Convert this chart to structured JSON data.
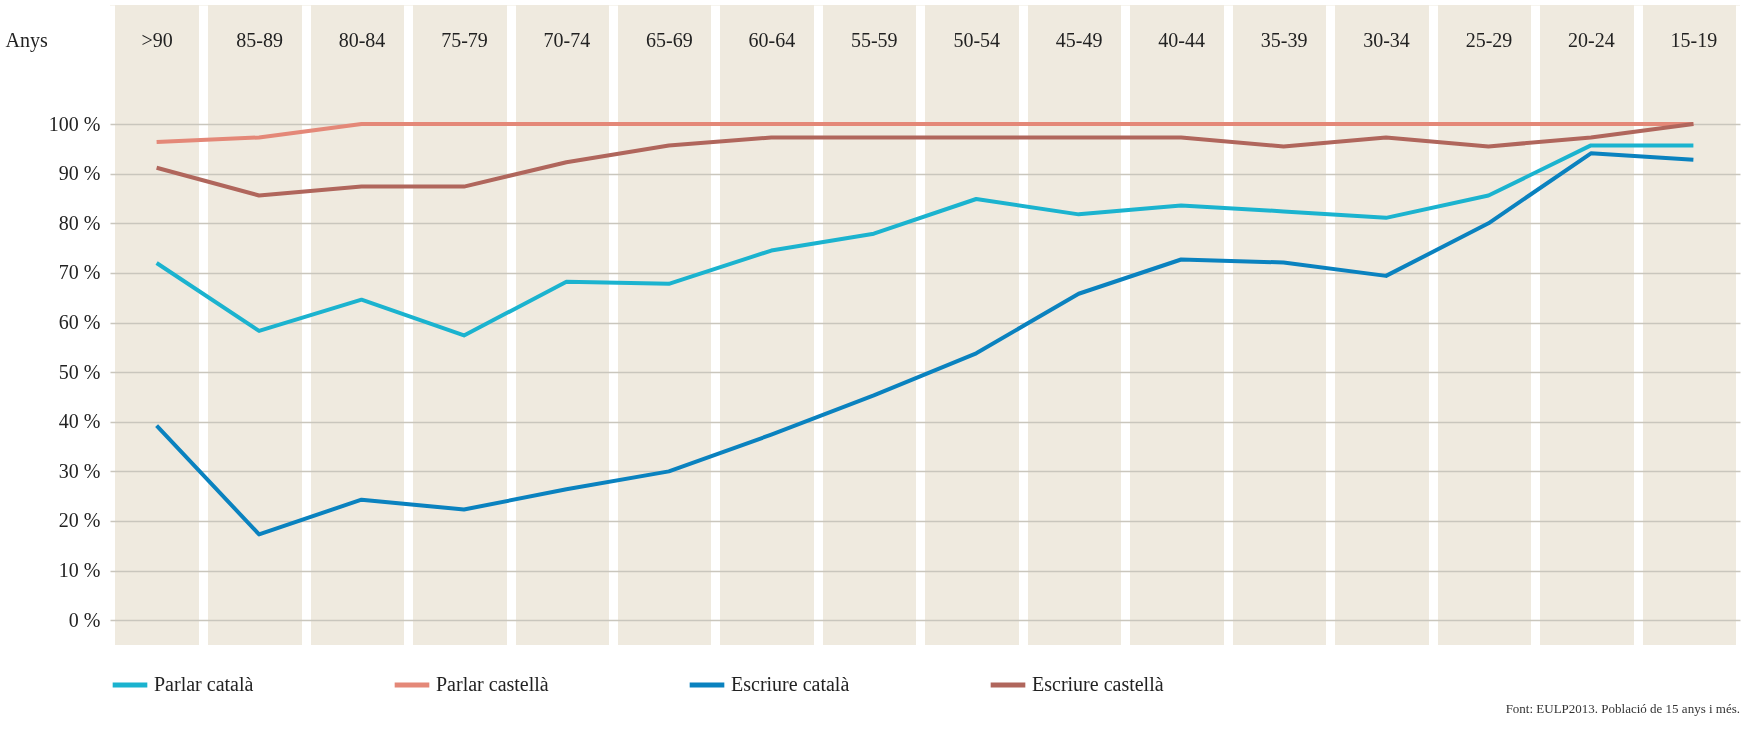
{
  "chart_data": {
    "type": "line",
    "xlabel": "Anys",
    "categories": [
      ">90",
      "85-89",
      "80-84",
      "75-79",
      "70-74",
      "65-69",
      "60-64",
      "55-59",
      "50-54",
      "45-49",
      "40-44",
      "35-39",
      "30-34",
      "25-29",
      "20-24",
      "15-19"
    ],
    "series": [
      {
        "name": "Parlar català",
        "color": "#1bb3cf",
        "values": [
          72,
          58.3,
          64.6,
          57.4,
          68.2,
          67.8,
          74.5,
          77.9,
          84.9,
          81.8,
          83.6,
          82.4,
          81.1,
          85.6,
          95.7,
          95.7
        ]
      },
      {
        "name": "Parlar castellà",
        "color": "#e48878",
        "values": [
          96.4,
          97.3,
          100,
          100,
          100,
          100,
          100,
          100,
          100,
          100,
          100,
          100,
          100,
          100,
          100,
          100
        ]
      },
      {
        "name": "Escriure català",
        "color": "#0a82bf",
        "values": [
          39.2,
          17.3,
          24.3,
          22.3,
          26.4,
          30,
          37.4,
          45.3,
          53.8,
          65.8,
          72.7,
          72.1,
          69.4,
          80,
          94.1,
          92.8
        ]
      },
      {
        "name": "Escriure castellà",
        "color": "#b0665c",
        "values": [
          91.2,
          85.6,
          87.4,
          87.4,
          92.3,
          95.7,
          97.3,
          97.3,
          97.3,
          97.3,
          97.3,
          95.5,
          97.3,
          95.5,
          97.3,
          100
        ]
      }
    ],
    "ylim": [
      -5,
      124
    ],
    "yticks": [
      {
        "value": 0,
        "label": "0 %"
      },
      {
        "value": 10,
        "label": "10 %"
      },
      {
        "value": 20,
        "label": "20 %"
      },
      {
        "value": 30,
        "label": "30 %"
      },
      {
        "value": 40,
        "label": "40 %"
      },
      {
        "value": 50,
        "label": "50 %"
      },
      {
        "value": 60,
        "label": "60 %"
      },
      {
        "value": 70,
        "label": "70 %"
      },
      {
        "value": 80,
        "label": "80 %"
      },
      {
        "value": 90,
        "label": "90 %"
      },
      {
        "value": 100,
        "label": "100 %"
      }
    ],
    "grid": true,
    "legend": "bottom",
    "annotations": [
      "Font: EULP2013. Població de 15 anys i més."
    ]
  }
}
